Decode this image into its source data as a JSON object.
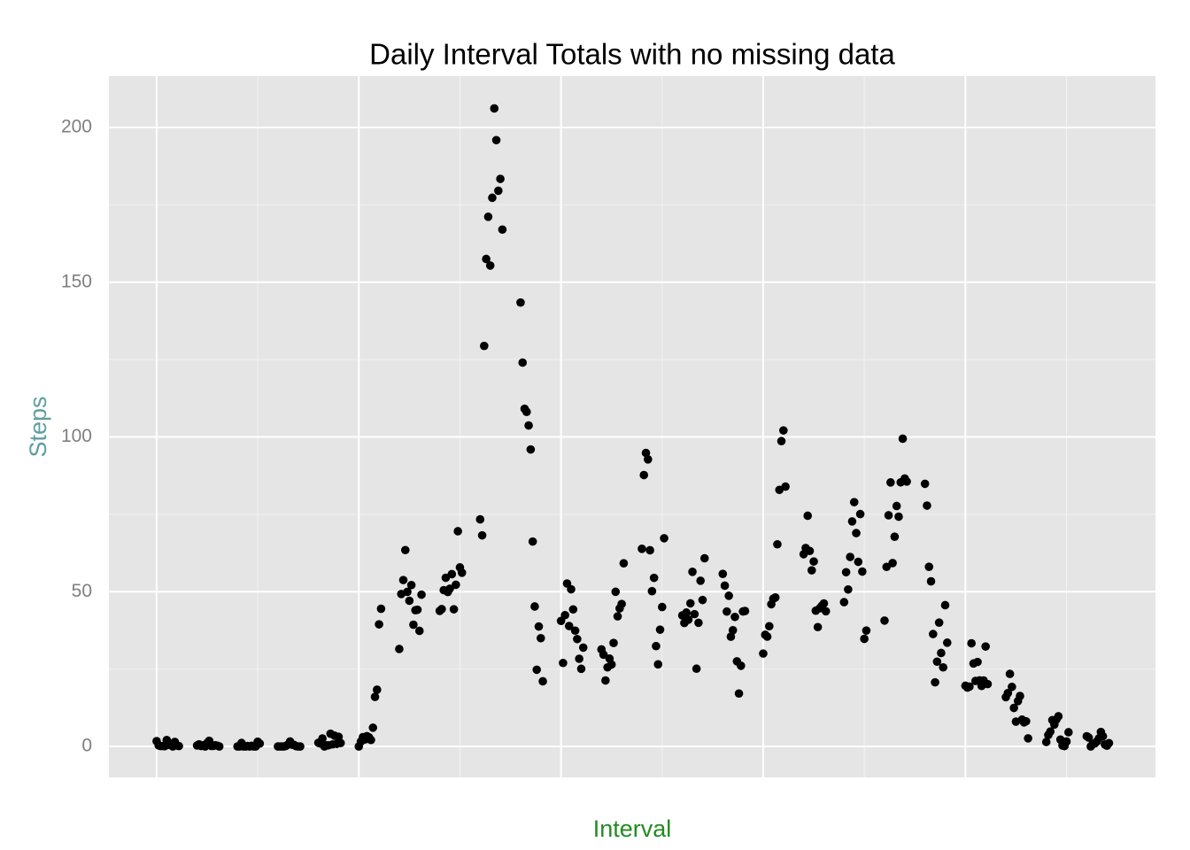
{
  "chart_data": {
    "type": "scatter",
    "title": "Daily Interval Totals with no missing data",
    "x_label": "Interval",
    "y_label": "Steps",
    "color": "#000000",
    "x": [
      0,
      5,
      10,
      15,
      20,
      25,
      30,
      35,
      40,
      45,
      50,
      55,
      100,
      105,
      110,
      115,
      120,
      125,
      130,
      135,
      140,
      145,
      150,
      155,
      200,
      205,
      210,
      215,
      220,
      225,
      230,
      235,
      240,
      245,
      250,
      255,
      300,
      305,
      310,
      315,
      320,
      325,
      330,
      335,
      340,
      345,
      350,
      355,
      400,
      405,
      410,
      415,
      420,
      425,
      430,
      435,
      440,
      445,
      450,
      455,
      500,
      505,
      510,
      515,
      520,
      525,
      530,
      535,
      540,
      545,
      550,
      555,
      600,
      605,
      610,
      615,
      620,
      625,
      630,
      635,
      640,
      645,
      650,
      655,
      700,
      705,
      710,
      715,
      720,
      725,
      730,
      735,
      740,
      745,
      750,
      755,
      800,
      805,
      810,
      815,
      820,
      825,
      830,
      835,
      840,
      845,
      850,
      855,
      900,
      905,
      910,
      915,
      920,
      925,
      930,
      935,
      940,
      945,
      950,
      955,
      1000,
      1005,
      1010,
      1015,
      1020,
      1025,
      1030,
      1035,
      1040,
      1045,
      1050,
      1055,
      1100,
      1105,
      1110,
      1115,
      1120,
      1125,
      1130,
      1135,
      1140,
      1145,
      1150,
      1155,
      1200,
      1205,
      1210,
      1215,
      1220,
      1225,
      1230,
      1235,
      1240,
      1245,
      1250,
      1255,
      1300,
      1305,
      1310,
      1315,
      1320,
      1325,
      1330,
      1335,
      1340,
      1345,
      1350,
      1355,
      1400,
      1405,
      1410,
      1415,
      1420,
      1425,
      1430,
      1435,
      1440,
      1445,
      1450,
      1455,
      1500,
      1505,
      1510,
      1515,
      1520,
      1525,
      1530,
      1535,
      1540,
      1545,
      1550,
      1555,
      1600,
      1605,
      1610,
      1615,
      1620,
      1625,
      1630,
      1635,
      1640,
      1645,
      1650,
      1655,
      1700,
      1705,
      1710,
      1715,
      1720,
      1725,
      1730,
      1735,
      1740,
      1745,
      1750,
      1755,
      1800,
      1805,
      1810,
      1815,
      1820,
      1825,
      1830,
      1835,
      1840,
      1845,
      1850,
      1855,
      1900,
      1905,
      1910,
      1915,
      1920,
      1925,
      1930,
      1935,
      1940,
      1945,
      1950,
      1955,
      2000,
      2005,
      2010,
      2015,
      2020,
      2025,
      2030,
      2035,
      2040,
      2045,
      2050,
      2055,
      2100,
      2105,
      2110,
      2115,
      2120,
      2125,
      2130,
      2135,
      2140,
      2145,
      2150,
      2155,
      2200,
      2205,
      2210,
      2215,
      2220,
      2225,
      2230,
      2235,
      2240,
      2245,
      2250,
      2255,
      2300,
      2305,
      2310,
      2315,
      2320,
      2325,
      2330,
      2335,
      2340,
      2345,
      2350,
      2355
    ],
    "values": [
      1.72,
      0.34,
      0.13,
      0.15,
      0.08,
      2.09,
      0.53,
      0.87,
      0,
      1.47,
      0.3,
      0.13,
      0.32,
      0.68,
      0.15,
      0.34,
      0,
      1.11,
      1.83,
      0.17,
      0.17,
      0.38,
      0.26,
      0,
      0,
      0,
      1.13,
      0,
      0,
      0.13,
      0,
      0.23,
      0,
      0,
      1.55,
      0.94,
      0,
      0,
      0,
      0,
      0.21,
      0.62,
      1.62,
      0.58,
      0.49,
      0.08,
      0,
      0,
      1.19,
      0.94,
      2.57,
      0,
      0.34,
      0.36,
      4.11,
      0.66,
      3.49,
      0.83,
      3.11,
      1.11,
      0,
      1.57,
      3,
      2.25,
      3.32,
      2.96,
      2.09,
      6.06,
      16.02,
      18.34,
      39.45,
      44.49,
      31.49,
      49.26,
      53.77,
      63.45,
      49.96,
      47.08,
      52.15,
      39.34,
      44.02,
      44.17,
      37.36,
      49.04,
      43.81,
      44.38,
      50.51,
      54.51,
      49.92,
      50.98,
      55.68,
      44.32,
      52.26,
      69.55,
      57.85,
      56.15,
      73.38,
      68.21,
      129.43,
      157.53,
      171.15,
      155.4,
      177.3,
      206.17,
      195.92,
      179.57,
      183.4,
      167.02,
      143.45,
      124.04,
      109.11,
      108.11,
      103.72,
      95.96,
      66.21,
      45.23,
      24.79,
      38.75,
      34.98,
      21.06,
      40.57,
      26.98,
      42.42,
      52.66,
      38.92,
      50.79,
      44.28,
      37.42,
      34.7,
      28.34,
      25.09,
      31.94,
      31.36,
      29.68,
      21.32,
      25.55,
      28.38,
      26.47,
      33.43,
      49.98,
      42.04,
      44.6,
      46.04,
      59.19,
      63.87,
      87.7,
      94.85,
      92.77,
      63.4,
      50.17,
      54.47,
      32.42,
      26.53,
      37.74,
      45.06,
      67.28,
      42.34,
      39.89,
      43.26,
      40.98,
      46.25,
      56.43,
      42.75,
      25.13,
      39.96,
      53.55,
      47.32,
      60.81,
      55.75,
      51.96,
      43.58,
      48.7,
      35.47,
      37.55,
      41.85,
      27.51,
      17.11,
      26.08,
      43.62,
      43.77,
      30.02,
      36.08,
      35.49,
      38.85,
      45.96,
      47.75,
      48.13,
      65.32,
      82.91,
      98.66,
      102.11,
      83.96,
      62.13,
      64.13,
      74.55,
      63.17,
      56.91,
      59.77,
      43.87,
      38.57,
      44.66,
      45.45,
      46.21,
      43.68,
      46.62,
      56.3,
      50.72,
      61.23,
      72.72,
      78.94,
      68.94,
      59.66,
      75.09,
      56.51,
      34.77,
      37.45,
      40.68,
      58.02,
      74.7,
      85.32,
      59.26,
      67.77,
      77.7,
      74.25,
      85.34,
      99.45,
      86.58,
      85.6,
      84.87,
      77.83,
      58.04,
      53.36,
      36.32,
      20.72,
      27.4,
      40.02,
      30.21,
      25.55,
      45.66,
      33.53,
      19.62,
      19.02,
      19.34,
      33.34,
      26.81,
      21.17,
      27.3,
      21.34,
      19.55,
      21.32,
      32.3,
      20.15,
      15.94,
      17.23,
      23.45,
      19.25,
      12.45,
      8.02,
      14.66,
      16.3,
      8.68,
      7.79,
      8.13,
      2.62,
      1.45,
      3.68,
      4.81,
      8.51,
      7.08,
      8.7,
      9.75,
      2.21,
      0.32,
      0.11,
      1.6,
      4.6,
      3.3,
      2.85,
      0,
      0.83,
      0.96,
      1.58,
      2.6,
      4.7,
      3.3,
      0.64,
      0.23,
      1.08
    ],
    "xlim": [
      -118,
      2470
    ],
    "xticks": [
      0,
      500,
      1000,
      1500,
      2000
    ],
    "ylim": [
      -10,
      216.6
    ],
    "yticks": [
      0,
      50,
      100,
      150,
      200
    ],
    "grid": true
  }
}
